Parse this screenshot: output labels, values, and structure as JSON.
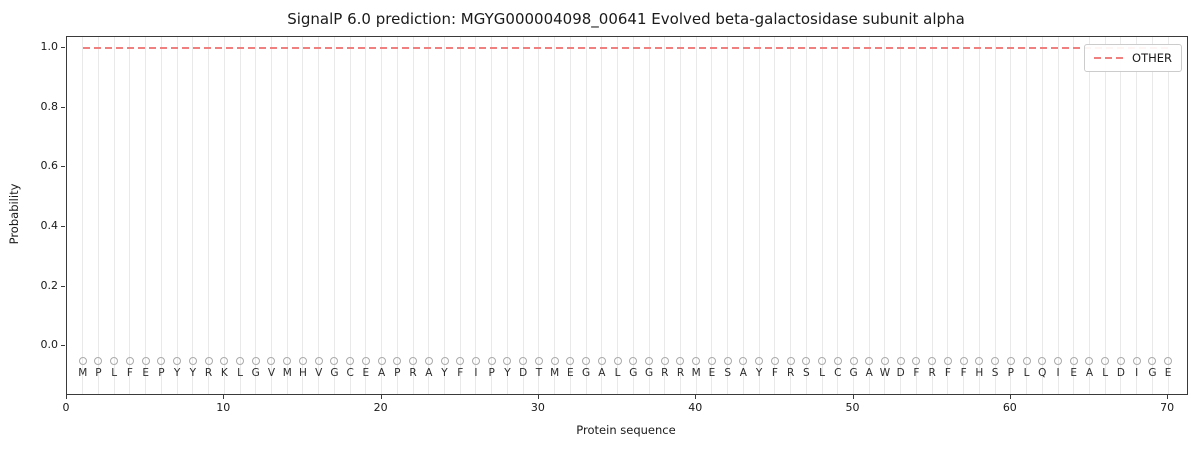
{
  "figure": {
    "title": "SignalP 6.0 prediction: MGYG000004098_00641 Evolved beta-galactosidase subunit alpha",
    "xlabel": "Protein sequence",
    "ylabel": "Probability",
    "legend": {
      "entries": [
        {
          "label": "OTHER",
          "color": "#f08080",
          "style": "dashed"
        }
      ]
    }
  },
  "chart_data": {
    "type": "line",
    "title": "SignalP 6.0 prediction: MGYG000004098_00641 Evolved beta-galactosidase subunit alpha",
    "xlabel": "Protein sequence",
    "ylabel": "Probability",
    "xlim": [
      0,
      71.2
    ],
    "ylim": [
      -0.16,
      1.037
    ],
    "x_ticks": [
      0,
      10,
      20,
      30,
      40,
      50,
      60,
      70
    ],
    "y_ticks": [
      0.0,
      0.2,
      0.4,
      0.6,
      0.8,
      1.0
    ],
    "grid": "vertical-line-per-residue",
    "legend_position": "upper-right",
    "sequence": "MPLFEPYYRKLGVMHVGCEAPRAYFIPYDTMEGALGGRRMESAYFRSLCGAWDFRFFHSPLQIEALDIGE",
    "series": [
      {
        "name": "OTHER",
        "color": "#f08080",
        "line_style": "dashed",
        "values": [
          1.0,
          1.0,
          1.0,
          1.0,
          1.0,
          1.0,
          1.0,
          1.0,
          1.0,
          1.0,
          1.0,
          1.0,
          1.0,
          1.0,
          1.0,
          1.0,
          1.0,
          1.0,
          1.0,
          1.0,
          1.0,
          1.0,
          1.0,
          1.0,
          1.0,
          1.0,
          1.0,
          1.0,
          1.0,
          1.0,
          1.0,
          1.0,
          1.0,
          1.0,
          1.0,
          1.0,
          1.0,
          1.0,
          1.0,
          1.0,
          1.0,
          1.0,
          1.0,
          1.0,
          1.0,
          1.0,
          1.0,
          1.0,
          1.0,
          1.0,
          1.0,
          1.0,
          1.0,
          1.0,
          1.0,
          1.0,
          1.0,
          1.0,
          1.0,
          1.0,
          1.0,
          1.0,
          1.0,
          1.0,
          1.0,
          1.0,
          1.0,
          1.0,
          1.0,
          1.0
        ]
      }
    ],
    "residue_markers": {
      "shape": "circle",
      "fill": "none",
      "edge_color": "#ababab"
    }
  }
}
